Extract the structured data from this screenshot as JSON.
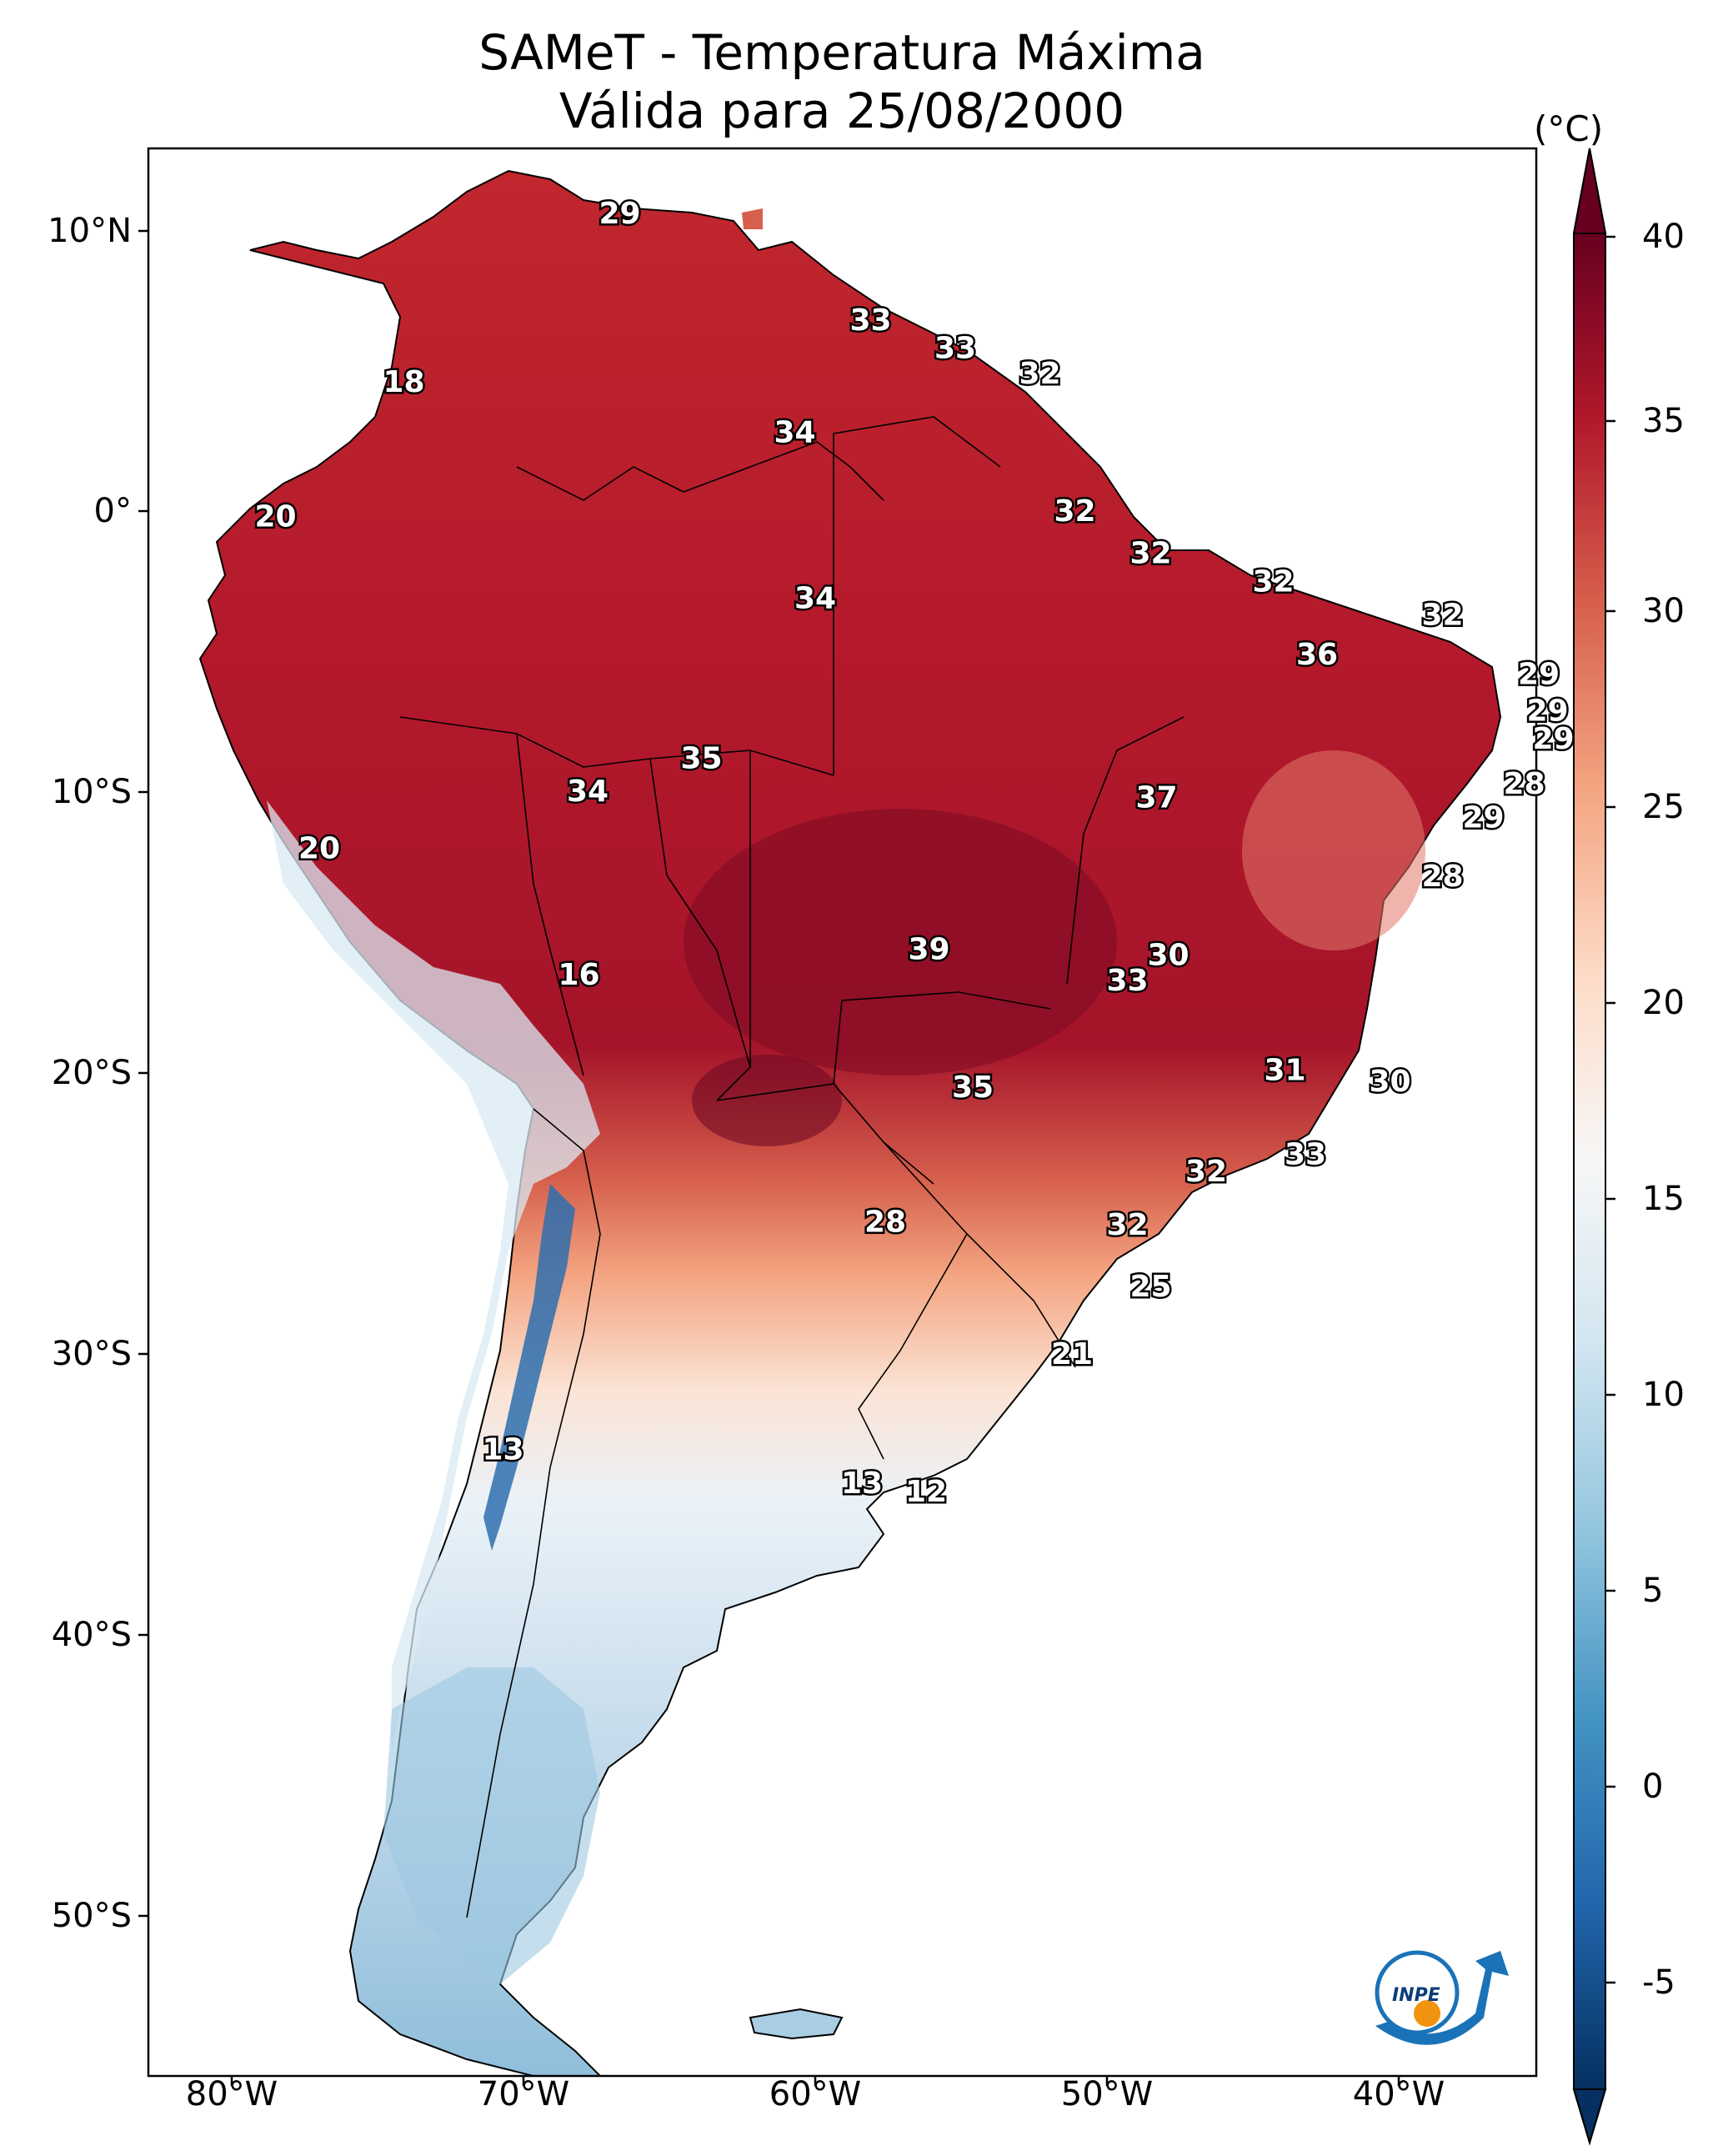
{
  "title": {
    "line1": "SAMeT - Temperatura Máxima",
    "line2": "Válida para 25/08/2000"
  },
  "colorbar": {
    "unit": "(°C)",
    "ticks": [
      "40",
      "35",
      "30",
      "25",
      "20",
      "15",
      "10",
      "5",
      "0",
      "-5"
    ],
    "range": [
      -5,
      40
    ],
    "extend": "both",
    "colormap": [
      "#053061",
      "#2166ac",
      "#4393c3",
      "#92c5de",
      "#d1e5f0",
      "#f7f7f7",
      "#fddbc7",
      "#f4a582",
      "#d6604d",
      "#b2182b",
      "#67001f"
    ]
  },
  "axes": {
    "lat_labels": [
      "10°N",
      "0°",
      "10°S",
      "20°S",
      "30°S",
      "40°S",
      "50°S"
    ],
    "lon_labels": [
      "80°W",
      "70°W",
      "60°W",
      "50°W",
      "40°W"
    ]
  },
  "map_values": [
    {
      "value": "29",
      "lon": -66.7,
      "lat": 10.6
    },
    {
      "value": "18",
      "lon": -74.1,
      "lat": 4.6
    },
    {
      "value": "33",
      "lon": -58.1,
      "lat": 6.8
    },
    {
      "value": "33",
      "lon": -55.2,
      "lat": 5.8
    },
    {
      "value": "32",
      "lon": -52.3,
      "lat": 4.9
    },
    {
      "value": "34",
      "lon": -60.7,
      "lat": 2.8
    },
    {
      "value": "20",
      "lon": -78.5,
      "lat": -0.2
    },
    {
      "value": "32",
      "lon": -51.1,
      "lat": 0.0
    },
    {
      "value": "32",
      "lon": -48.5,
      "lat": -1.5
    },
    {
      "value": "32",
      "lon": -44.3,
      "lat": -2.5
    },
    {
      "value": "34",
      "lon": -60.0,
      "lat": -3.1
    },
    {
      "value": "32",
      "lon": -38.5,
      "lat": -3.7
    },
    {
      "value": "36",
      "lon": -42.8,
      "lat": -5.1
    },
    {
      "value": "29",
      "lon": -35.2,
      "lat": -5.8
    },
    {
      "value": "29",
      "lon": -34.9,
      "lat": -7.1
    },
    {
      "value": "29",
      "lon": -34.7,
      "lat": -8.1
    },
    {
      "value": "35",
      "lon": -63.9,
      "lat": -8.8
    },
    {
      "value": "34",
      "lon": -67.8,
      "lat": -9.97
    },
    {
      "value": "37",
      "lon": -48.3,
      "lat": -10.2
    },
    {
      "value": "28",
      "lon": -35.7,
      "lat": -9.7
    },
    {
      "value": "29",
      "lon": -37.1,
      "lat": -10.9
    },
    {
      "value": "20",
      "lon": -77.0,
      "lat": -12.0
    },
    {
      "value": "28",
      "lon": -38.5,
      "lat": -13.0
    },
    {
      "value": "39",
      "lon": -56.1,
      "lat": -15.6
    },
    {
      "value": "30",
      "lon": -47.9,
      "lat": -15.8
    },
    {
      "value": "16",
      "lon": -68.1,
      "lat": -16.5
    },
    {
      "value": "33",
      "lon": -49.3,
      "lat": -16.7
    },
    {
      "value": "31",
      "lon": -43.9,
      "lat": -19.9
    },
    {
      "value": "30",
      "lon": -40.3,
      "lat": -20.3
    },
    {
      "value": "35",
      "lon": -54.6,
      "lat": -20.5
    },
    {
      "value": "33",
      "lon": -43.2,
      "lat": -22.9
    },
    {
      "value": "32",
      "lon": -46.6,
      "lat": -23.5
    },
    {
      "value": "28",
      "lon": -57.6,
      "lat": -25.3
    },
    {
      "value": "32",
      "lon": -49.3,
      "lat": -25.4
    },
    {
      "value": "25",
      "lon": -48.5,
      "lat": -27.6
    },
    {
      "value": "21",
      "lon": -51.2,
      "lat": -30.0
    },
    {
      "value": "13",
      "lon": -70.7,
      "lat": -33.4
    },
    {
      "value": "13",
      "lon": -58.4,
      "lat": -34.6
    },
    {
      "value": "12",
      "lon": -56.2,
      "lat": -34.9
    }
  ],
  "logo": {
    "text": "INPE"
  }
}
